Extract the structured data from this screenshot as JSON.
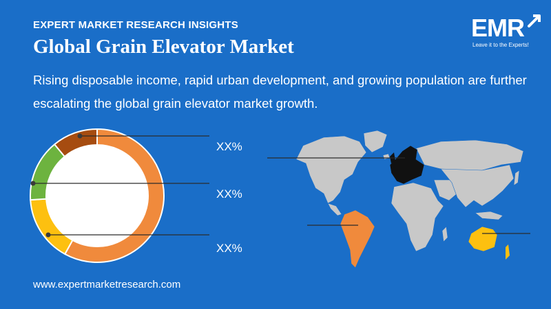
{
  "header": {
    "kicker": "EXPERT MARKET RESEARCH INSIGHTS",
    "title": "Global Grain Elevator Market",
    "subtitle": "Rising disposable income, rapid urban development, and growing population are further escalating the global grain elevator market growth."
  },
  "logo": {
    "text": "EMR",
    "tagline": "Leave it to the Experts!"
  },
  "footer": {
    "url": "www.expertmarketresearch.com"
  },
  "colors": {
    "background": "#1a6ec8",
    "orange": "#f08a3c",
    "yellow": "#fdc010",
    "green": "#6db33f",
    "brown": "#a64c10",
    "map_gray": "#c8c8c8",
    "europe": "#111111"
  },
  "chart_data": {
    "type": "pie",
    "donut": true,
    "slices": [
      {
        "value": 58,
        "color": "#f08a3c"
      },
      {
        "value": 16,
        "color": "#fdc010"
      },
      {
        "value": 15,
        "color": "#6db33f"
      },
      {
        "value": 11,
        "color": "#a64c10"
      }
    ],
    "annotations": [
      "XX%",
      "XX%",
      "XX%"
    ]
  },
  "map": {
    "highlighted_regions": [
      {
        "region": "europe",
        "color": "#111111"
      },
      {
        "region": "south-america",
        "color": "#f08a3c"
      },
      {
        "region": "australia",
        "color": "#fdc010"
      }
    ]
  }
}
